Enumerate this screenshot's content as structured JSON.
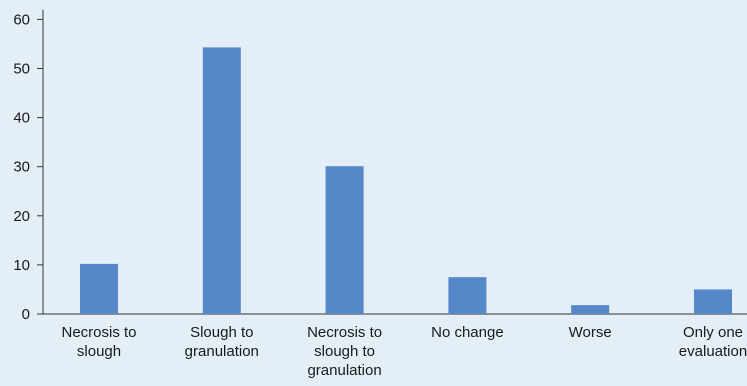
{
  "chart_data": {
    "type": "bar",
    "title": "",
    "xlabel": "",
    "ylabel": "",
    "categories": [
      [
        "Necrosis to",
        "slough"
      ],
      [
        "Slough to",
        "granulation"
      ],
      [
        "Necrosis to",
        "slough to",
        "granulation"
      ],
      [
        "No change"
      ],
      [
        "Worse"
      ],
      [
        "Only one",
        "evaluation"
      ]
    ],
    "values": [
      10.2,
      54.3,
      30.1,
      7.5,
      1.8,
      5.0
    ],
    "ylim": [
      0,
      62
    ],
    "yticks": [
      0,
      10,
      20,
      30,
      40,
      50,
      60
    ],
    "grid": false,
    "legend": "none",
    "bar_color": "#5588c8",
    "axis_color": "#333333",
    "background": "#e3eef6"
  }
}
